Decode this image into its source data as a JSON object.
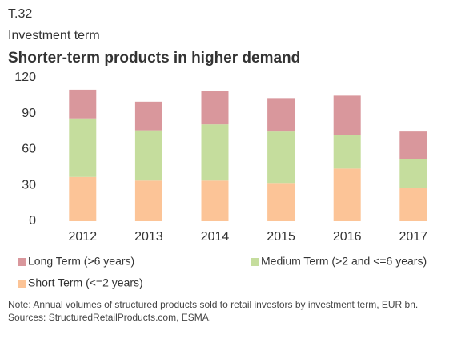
{
  "chart_data": {
    "type": "stacked_bar",
    "label": "T.32",
    "subtitle": "Investment term",
    "title": "Shorter-term products in higher demand",
    "categories": [
      "2012",
      "2013",
      "2014",
      "2015",
      "2016",
      "2017"
    ],
    "series": [
      {
        "name": "Long Term (>6 years)",
        "color": "#d9979c",
        "values": [
          24,
          24,
          28,
          28,
          33,
          23
        ]
      },
      {
        "name": "Medium Term (>2 and <=6 years)",
        "color": "#c5dd9d",
        "values": [
          49,
          42,
          47,
          43,
          28,
          24
        ]
      },
      {
        "name": "Short Term (<=2 years)",
        "color": "#fcc497",
        "values": [
          37,
          34,
          34,
          32,
          44,
          28
        ]
      }
    ],
    "ylim": [
      0,
      120
    ],
    "yticks": [
      0,
      30,
      60,
      90,
      120
    ],
    "grid": false,
    "note": "Note: Annual volumes of structured products sold to retail investors by investment term, EUR bn.",
    "source": "Sources: StructuredRetailProducts.com, ESMA."
  }
}
